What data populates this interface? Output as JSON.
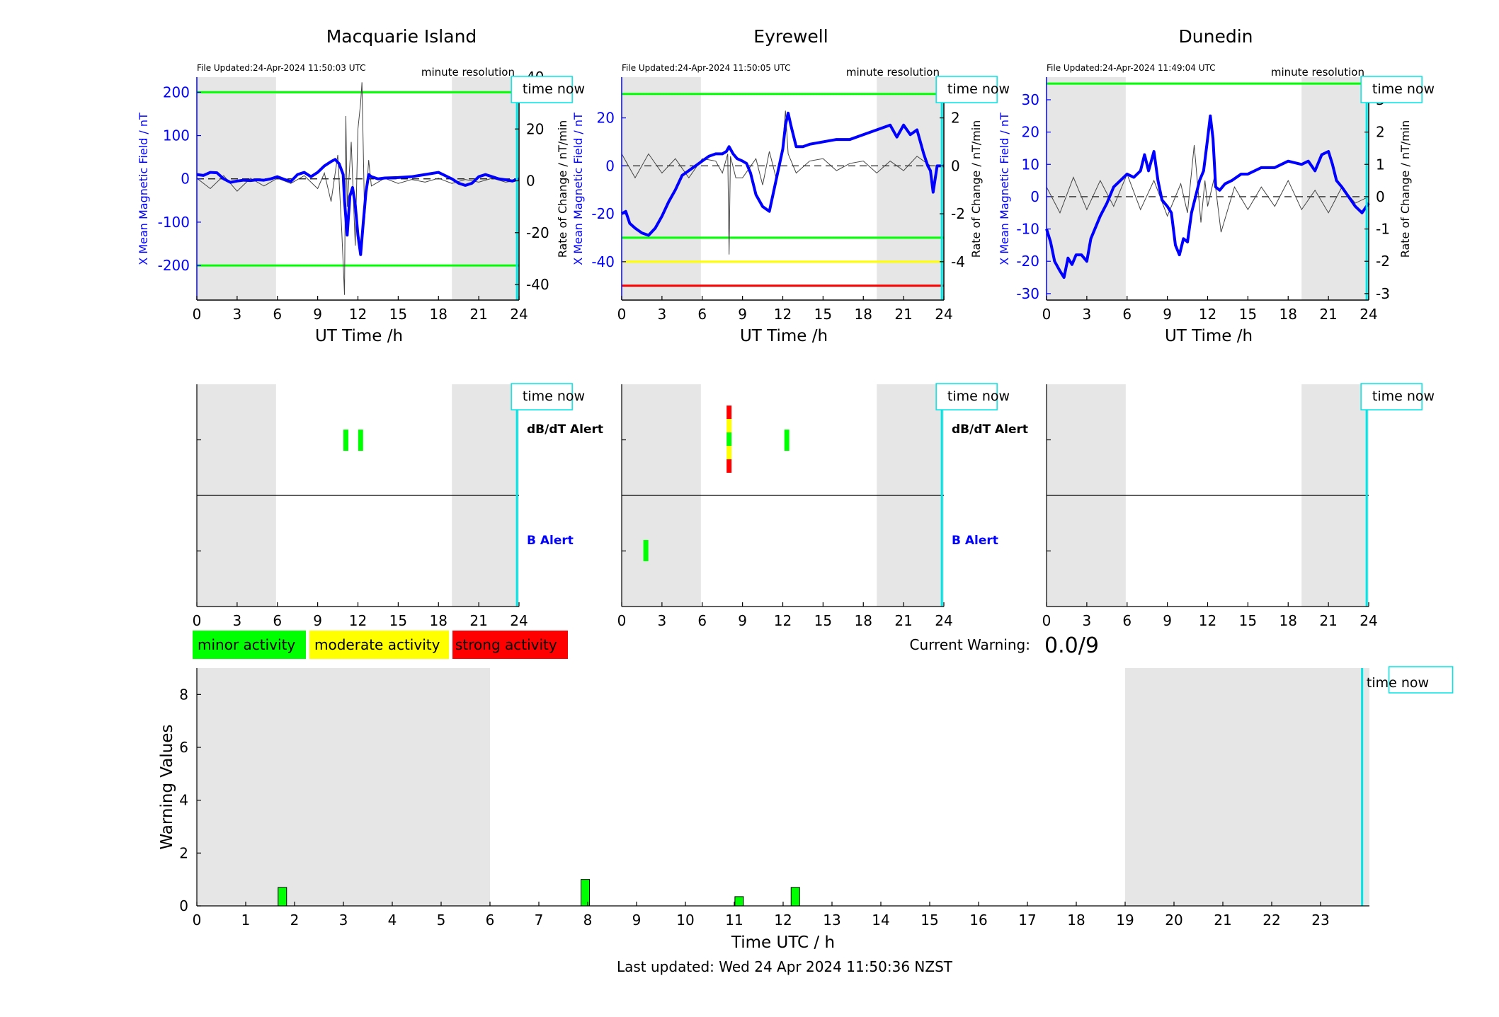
{
  "colors": {
    "x_series": "#0000ff",
    "rate_series": "#444444",
    "night": "#e6e6e6",
    "time_now": "#00e5e5",
    "minor": "#00ff00",
    "moderate": "#ffff00",
    "strong": "#ff0000"
  },
  "time_now_label": "time now",
  "magnetometer_panels": [
    {
      "station": "Macquarie Island",
      "file_updated": "File Updated:24-Apr-2024 11:50:03 UTC",
      "resolution": "minute resolution",
      "left_axis_label": "X Mean Magnetic Field / nT",
      "right_axis_label": "Rate of Change / nT/min",
      "x_label": "UT Time /h",
      "chart_data": {
        "type": "line",
        "xlim": [
          0,
          24
        ],
        "ylim_left": [
          -280,
          235
        ],
        "ylim_right": [
          -46,
          40
        ],
        "x_ticks": [
          0,
          3,
          6,
          9,
          12,
          15,
          18,
          21,
          24
        ],
        "left_ticks": [
          -200,
          -100,
          0,
          100,
          200
        ],
        "right_ticks": [
          -40,
          -20,
          0,
          20,
          40
        ],
        "night_bands": [
          [
            0,
            5.9
          ],
          [
            19.0,
            24
          ]
        ],
        "time_now": 23.85,
        "threshold_lines": [
          {
            "axis": "left",
            "value": 200,
            "color": "#00ff00"
          },
          {
            "axis": "left",
            "value": -200,
            "color": "#00ff00"
          }
        ],
        "x_field": {
          "x": [
            0,
            0.5,
            1,
            1.5,
            2,
            2.5,
            3,
            3.5,
            4,
            4.5,
            5,
            5.5,
            6,
            6.5,
            7,
            7.5,
            8,
            8.5,
            9,
            9.5,
            10,
            10.3,
            10.6,
            10.9,
            11.0,
            11.2,
            11.4,
            11.6,
            11.8,
            12.0,
            12.2,
            12.4,
            12.6,
            12.8,
            13,
            13.5,
            14,
            15,
            16,
            17,
            18,
            19,
            19.5,
            20,
            20.5,
            21,
            21.5,
            22,
            22.5,
            23,
            23.5,
            24
          ],
          "y": [
            10,
            8,
            15,
            14,
            0,
            -8,
            -5,
            -3,
            -4,
            -2,
            -3,
            0,
            5,
            -1,
            -6,
            10,
            15,
            5,
            15,
            30,
            40,
            45,
            35,
            10,
            -50,
            -130,
            -40,
            -20,
            -60,
            -130,
            -175,
            -100,
            -30,
            10,
            5,
            0,
            2,
            3,
            5,
            10,
            15,
            0,
            -10,
            -15,
            -10,
            5,
            10,
            5,
            0,
            -2,
            -5,
            0
          ]
        },
        "rate_of_change": {
          "x": [
            0,
            1,
            2,
            3,
            4,
            5,
            6,
            7,
            8,
            9,
            9.5,
            10,
            10.5,
            10.8,
            11.0,
            11.1,
            11.2,
            11.5,
            11.8,
            12.0,
            12.2,
            12.3,
            12.5,
            12.8,
            13,
            14,
            15,
            16,
            17,
            18,
            19,
            20,
            21,
            22,
            23,
            23.8
          ],
          "y": [
            1,
            -3,
            2,
            -4,
            1,
            -2,
            1,
            -1,
            2,
            -3,
            3,
            -8,
            10,
            -20,
            -44,
            25,
            -10,
            15,
            -25,
            20,
            30,
            38,
            -15,
            8,
            -2,
            1,
            -1,
            0.5,
            -0.5,
            1,
            -1,
            0.5,
            -0.5,
            1,
            -0.5,
            0
          ]
        }
      }
    },
    {
      "station": "Eyrewell",
      "file_updated": "File Updated:24-Apr-2024 11:50:05 UTC",
      "resolution": "minute resolution",
      "left_axis_label": "X Mean Magnetic Field / nT",
      "right_axis_label": "Rate of Change / nT/min",
      "x_label": "UT Time /h",
      "chart_data": {
        "type": "line",
        "xlim": [
          0,
          24
        ],
        "ylim_left": [
          -56,
          37
        ],
        "ylim_right": [
          -5.6,
          3.7
        ],
        "x_ticks": [
          0,
          3,
          6,
          9,
          12,
          15,
          18,
          21,
          24
        ],
        "left_ticks": [
          -40,
          -20,
          0,
          20
        ],
        "right_ticks": [
          -4,
          -2,
          0,
          2
        ],
        "night_bands": [
          [
            0,
            5.9
          ],
          [
            19.0,
            24
          ]
        ],
        "time_now": 23.85,
        "threshold_lines": [
          {
            "axis": "left",
            "value": 30,
            "color": "#00ff00"
          },
          {
            "axis": "left",
            "value": -30,
            "color": "#00ff00"
          },
          {
            "axis": "left",
            "value": -40,
            "color": "#ffff00"
          },
          {
            "axis": "left",
            "value": -50,
            "color": "#ff0000"
          }
        ],
        "x_field": {
          "x": [
            0,
            0.3,
            0.6,
            1,
            1.5,
            2,
            2.5,
            3,
            3.5,
            4,
            4.5,
            5,
            5.5,
            6,
            6.5,
            7,
            7.5,
            7.8,
            8.0,
            8.3,
            8.6,
            9,
            9.3,
            9.6,
            10,
            10.5,
            11,
            11.5,
            12,
            12.2,
            12.4,
            12.6,
            13,
            13.5,
            14,
            15,
            16,
            17,
            18,
            19,
            20,
            20.5,
            21,
            21.5,
            22,
            22.5,
            22.8,
            23,
            23.2,
            23.5,
            24
          ],
          "y": [
            -20,
            -19,
            -24,
            -26,
            -28,
            -29,
            -26,
            -21,
            -15,
            -10,
            -4,
            -2,
            0,
            2,
            4,
            5,
            5,
            6,
            8,
            5,
            3,
            2,
            1,
            -3,
            -12,
            -17,
            -19,
            -6,
            7,
            17,
            22,
            17,
            8,
            8,
            9,
            10,
            11,
            11,
            13,
            15,
            17,
            12,
            17,
            13,
            15,
            5,
            0,
            -2,
            -11,
            0,
            0
          ]
        },
        "rate_of_change": {
          "x": [
            0,
            1,
            2,
            3,
            4,
            5,
            6,
            7,
            7.5,
            7.9,
            8.0,
            8.1,
            8.5,
            9,
            10,
            10.5,
            11,
            11.5,
            12,
            12.2,
            12.4,
            13,
            14,
            15,
            16,
            17,
            18,
            19,
            20,
            21,
            22,
            23,
            23.5
          ],
          "y": [
            0.5,
            -0.5,
            0.5,
            -0.3,
            0.3,
            -0.5,
            0.3,
            0.2,
            -0.3,
            0.5,
            -3.7,
            0.4,
            -0.5,
            -0.5,
            0.3,
            -0.8,
            0.6,
            -0.5,
            0.9,
            2.3,
            0.5,
            -0.3,
            0.2,
            0.3,
            -0.2,
            0.1,
            0.2,
            -0.3,
            0.2,
            -0.2,
            0.4,
            0,
            0
          ]
        }
      }
    },
    {
      "station": "Dunedin",
      "file_updated": "File Updated:24-Apr-2024 11:49:04 UTC",
      "resolution": "minute resolution",
      "left_axis_label": "X Mean Magnetic Field / nT",
      "right_axis_label": "Rate of Change / nT/min",
      "x_label": "UT Time /h",
      "chart_data": {
        "type": "line",
        "xlim": [
          0,
          24
        ],
        "ylim_left": [
          -32,
          37
        ],
        "ylim_right": [
          -3.2,
          3.7
        ],
        "x_ticks": [
          0,
          3,
          6,
          9,
          12,
          15,
          18,
          21,
          24
        ],
        "left_ticks": [
          -30,
          -20,
          -10,
          0,
          10,
          20,
          30
        ],
        "right_ticks": [
          -3,
          -2,
          -1,
          0,
          1,
          2,
          3
        ],
        "night_bands": [
          [
            0,
            5.9
          ],
          [
            19.0,
            24
          ]
        ],
        "time_now": 23.85,
        "threshold_lines": [
          {
            "axis": "left",
            "value": 35,
            "color": "#00ff00"
          }
        ],
        "x_field": {
          "x": [
            0,
            0.3,
            0.6,
            1,
            1.3,
            1.6,
            1.9,
            2.2,
            2.6,
            3,
            3.3,
            3.6,
            4,
            4.5,
            5,
            5.5,
            6,
            6.5,
            7,
            7.3,
            7.6,
            8,
            8.3,
            8.6,
            9,
            9.3,
            9.6,
            9.9,
            10.2,
            10.5,
            10.8,
            11.1,
            11.4,
            11.7,
            12.0,
            12.2,
            12.4,
            12.6,
            12.9,
            13.3,
            13.8,
            14.5,
            15,
            16,
            17,
            18,
            19,
            19.5,
            20,
            20.5,
            21,
            21.3,
            21.6,
            22,
            22.5,
            23,
            23.5,
            24
          ],
          "y": [
            -10,
            -14,
            -20,
            -23,
            -25,
            -19,
            -21,
            -18,
            -18,
            -20,
            -13,
            -10,
            -6,
            -2,
            3,
            5,
            7,
            6,
            8,
            13,
            8,
            14,
            5,
            -1,
            -3,
            -5,
            -15,
            -18,
            -13,
            -14,
            -5,
            0,
            5,
            8,
            18,
            25,
            18,
            3,
            2,
            4,
            5,
            7,
            7,
            9,
            9,
            11,
            10,
            11,
            8,
            13,
            14,
            10,
            5,
            3,
            0,
            -3,
            -5,
            -2
          ]
        },
        "rate_of_change": {
          "x": [
            0,
            1,
            2,
            3,
            4,
            5,
            6,
            7,
            8,
            9,
            10,
            10.5,
            11,
            11.5,
            11.8,
            12,
            12.5,
            13,
            14,
            15,
            16,
            17,
            18,
            19,
            20,
            21,
            22,
            23,
            24
          ],
          "y": [
            0.3,
            -0.5,
            0.6,
            -0.4,
            0.5,
            -0.3,
            0.7,
            -0.4,
            0.5,
            -0.6,
            0.4,
            -0.5,
            1.6,
            -0.8,
            0.5,
            -0.3,
            0.6,
            -1.1,
            0.3,
            -0.4,
            0.3,
            -0.3,
            0.5,
            -0.4,
            0.2,
            -0.5,
            0.3,
            -0.2,
            0
          ]
        }
      }
    }
  ],
  "alert_panels": [
    {
      "dbdt_label": "dB/dT Alert",
      "b_label": "B Alert",
      "chart_data": {
        "type": "bar",
        "xlim": [
          0,
          24
        ],
        "x_ticks": [
          0,
          3,
          6,
          9,
          12,
          15,
          18,
          21,
          24
        ],
        "night_bands": [
          [
            0,
            5.9
          ],
          [
            19.0,
            24
          ]
        ],
        "time_now": 23.85,
        "dbdt_events": [
          {
            "t": 11.1,
            "levels": [
              "minor"
            ]
          },
          {
            "t": 12.2,
            "levels": [
              "minor"
            ]
          }
        ],
        "b_events": []
      }
    },
    {
      "dbdt_label": "dB/dT Alert",
      "b_label": "B Alert",
      "chart_data": {
        "type": "bar",
        "xlim": [
          0,
          24
        ],
        "x_ticks": [
          0,
          3,
          6,
          9,
          12,
          15,
          18,
          21,
          24
        ],
        "night_bands": [
          [
            0,
            5.9
          ],
          [
            19.0,
            24
          ]
        ],
        "time_now": 23.85,
        "dbdt_events": [
          {
            "t": 8.0,
            "levels": [
              "strong",
              "moderate",
              "minor",
              "moderate",
              "strong"
            ]
          },
          {
            "t": 12.3,
            "levels": [
              "minor"
            ]
          }
        ],
        "b_events": [
          {
            "t": 1.8,
            "levels": [
              "minor"
            ]
          }
        ]
      }
    },
    {
      "dbdt_label": "",
      "b_label": "",
      "chart_data": {
        "type": "bar",
        "xlim": [
          0,
          24
        ],
        "x_ticks": [
          0,
          3,
          6,
          9,
          12,
          15,
          18,
          21,
          24
        ],
        "night_bands": [
          [
            0,
            5.9
          ],
          [
            19.0,
            24
          ]
        ],
        "time_now": 23.85,
        "dbdt_events": [],
        "b_events": []
      }
    }
  ],
  "legend": {
    "minor": "minor activity",
    "moderate": "moderate activity",
    "strong": "strong activity"
  },
  "current_warning": {
    "label": "Current Warning:",
    "value": "0.0/9"
  },
  "warning_chart": {
    "y_label": "Warning Values",
    "x_label": "Time UTC / h",
    "chart_data": {
      "type": "bar",
      "xlim": [
        0,
        24
      ],
      "ylim": [
        0,
        9
      ],
      "x_ticks": [
        0,
        1,
        2,
        3,
        4,
        5,
        6,
        7,
        8,
        9,
        10,
        11,
        12,
        13,
        14,
        15,
        16,
        17,
        18,
        19,
        20,
        21,
        22,
        23
      ],
      "y_ticks": [
        0,
        2,
        4,
        6,
        8
      ],
      "night_bands": [
        [
          0,
          6.0
        ],
        [
          19.0,
          24
        ]
      ],
      "time_now": 23.85,
      "bars": [
        {
          "t": 1.75,
          "value": 0.7
        },
        {
          "t": 7.95,
          "value": 1.0
        },
        {
          "t": 11.1,
          "value": 0.35
        },
        {
          "t": 12.25,
          "value": 0.7
        }
      ]
    }
  },
  "last_updated": "Last updated: Wed 24 Apr 2024 11:50:36 NZST"
}
